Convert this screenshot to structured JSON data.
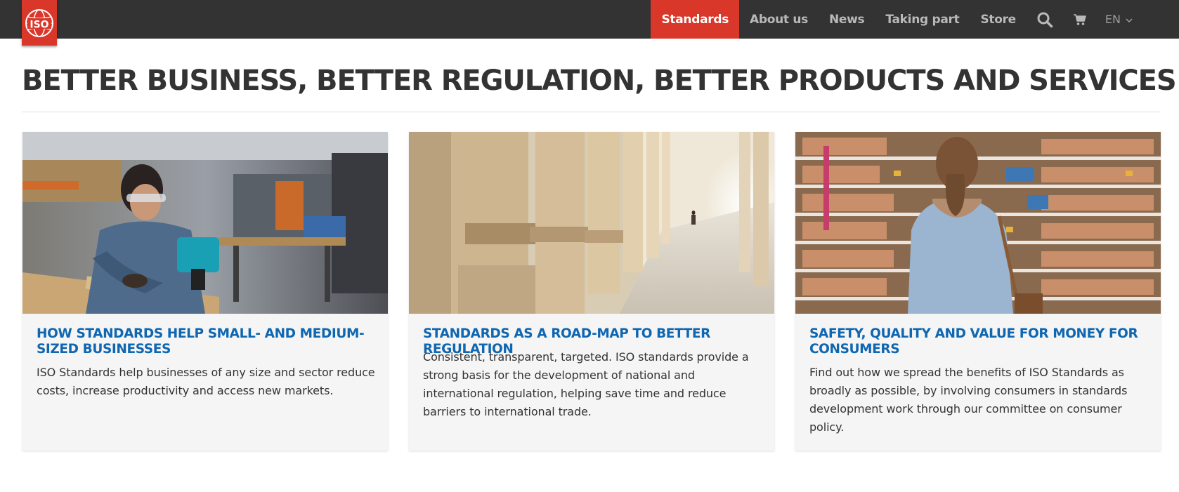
{
  "brand": {
    "logo_text": "ISO",
    "accent_color": "#d9372a",
    "link_color": "#0f66b1"
  },
  "nav": {
    "items": [
      {
        "label": "Standards",
        "active": true
      },
      {
        "label": "About us",
        "active": false
      },
      {
        "label": "News",
        "active": false
      },
      {
        "label": "Taking part",
        "active": false
      },
      {
        "label": "Store",
        "active": false
      }
    ],
    "search_icon": "search-icon",
    "cart_icon": "cart-icon",
    "language": "EN"
  },
  "page": {
    "title": "BETTER BUSINESS, BETTER REGULATION, BETTER PRODUCTS AND SERVICES"
  },
  "cards": [
    {
      "image": "woman-with-power-tool-workshop-photo",
      "title": "HOW STANDARDS HELP SMALL- AND MEDIUM-SIZED BUSINESSES",
      "text": "ISO Standards help businesses of any size and sector reduce costs, increase productivity and access new markets."
    },
    {
      "image": "colonnade-corridor-photo",
      "title": "STANDARDS AS A ROAD-MAP TO BETTER REGULATION",
      "text": "Consistent, transparent, targeted. ISO standards provide a strong basis for the development of national and international regulation, helping save time and reduce barriers to international trade."
    },
    {
      "image": "woman-in-supermarket-aisle-photo",
      "title": "SAFETY, QUALITY AND VALUE FOR MONEY FOR CONSUMERS",
      "text": "Find out how we spread the benefits of ISO Standards as broadly as possible, by involving consumers in standards development work through our committee on consumer policy."
    }
  ]
}
